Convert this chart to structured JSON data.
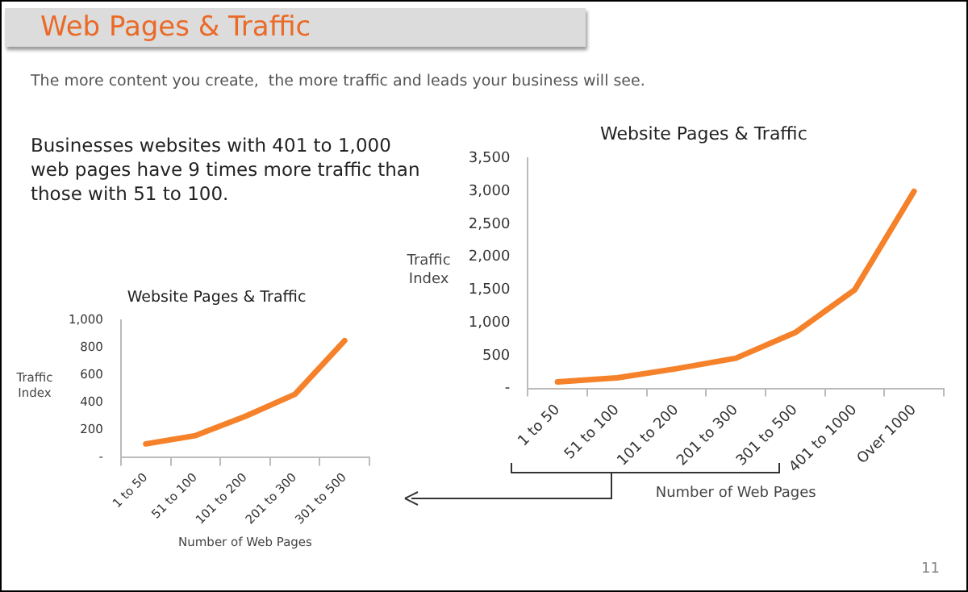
{
  "chart_data": [
    {
      "type": "line",
      "title": "Website Pages & Traffic",
      "xlabel": "Number of Web Pages",
      "ylabel": "Traffic Index",
      "categories": [
        "1 to 50",
        "51 to 100",
        "101 to 200",
        "201 to 300",
        "301 to 500",
        "401 to 1000",
        "Over 1000"
      ],
      "series": [
        {
          "color": "#f5822a",
          "values": [
            100,
            160,
            300,
            460,
            850,
            1500,
            3000
          ]
        }
      ],
      "ylim": [
        0,
        3500
      ],
      "yticks": [
        {
          "value": 0,
          "label": "-"
        },
        {
          "value": 500,
          "label": "500"
        },
        {
          "value": 1000,
          "label": "1,000"
        },
        {
          "value": 1500,
          "label": "1,500"
        },
        {
          "value": 2000,
          "label": "2,000"
        },
        {
          "value": 2500,
          "label": "2,500"
        },
        {
          "value": 3000,
          "label": "3,000"
        },
        {
          "value": 3500,
          "label": "3,500"
        }
      ],
      "marker": "none",
      "legend": false,
      "annotations": [
        "Web Pages & Traffic",
        "The more content you create,  the more traffic and leads your business will see.",
        "Businesses websites with 401 to 1,000 web pages have 9 times more traffic than those with 51 to 100.",
        "11"
      ]
    },
    {
      "type": "line",
      "title": "Website Pages & Traffic",
      "xlabel": "Number of Web Pages",
      "ylabel": "Traffic Index",
      "categories": [
        "1 to 50",
        "51 to 100",
        "101 to 200",
        "201 to 300",
        "301 to 500"
      ],
      "series": [
        {
          "color": "#f5822a",
          "values": [
            100,
            160,
            300,
            460,
            850
          ]
        }
      ],
      "ylim": [
        0,
        1000
      ],
      "yticks": [
        {
          "value": 0,
          "label": "-"
        },
        {
          "value": 200,
          "label": "200"
        },
        {
          "value": 400,
          "label": "400"
        },
        {
          "value": 600,
          "label": "600"
        },
        {
          "value": 800,
          "label": "800"
        },
        {
          "value": 1000,
          "label": "1,000"
        }
      ],
      "marker": "none",
      "legend": false
    }
  ]
}
